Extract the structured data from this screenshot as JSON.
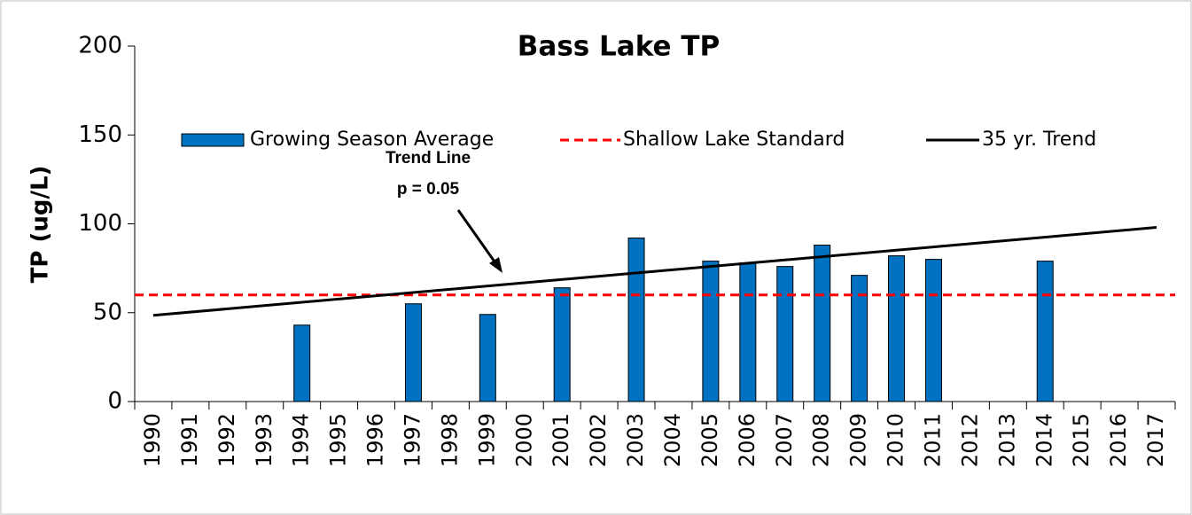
{
  "chart_data": {
    "type": "bar",
    "title": "Bass Lake TP",
    "y_label": "TP (ug/L)",
    "categories": [
      "1990",
      "1991",
      "1992",
      "1993",
      "1994",
      "1995",
      "1996",
      "1997",
      "1998",
      "1999",
      "2000",
      "2001",
      "2002",
      "2003",
      "2004",
      "2005",
      "2006",
      "2007",
      "2008",
      "2009",
      "2010",
      "2011",
      "2012",
      "2013",
      "2014",
      "2015",
      "2016",
      "2017"
    ],
    "series": [
      {
        "name": "Growing Season Average",
        "color": "#0070c0",
        "values": [
          null,
          null,
          null,
          null,
          43,
          null,
          null,
          55,
          null,
          49,
          null,
          64,
          null,
          92,
          null,
          79,
          78,
          76,
          88,
          71,
          82,
          80,
          null,
          null,
          79,
          null,
          null,
          null
        ]
      }
    ],
    "standard": {
      "name": "Shallow Lake Standard",
      "color": "#ff0000",
      "value": 60
    },
    "trend": {
      "name": "35 yr. Trend",
      "color": "#000000",
      "x": [
        "1990",
        "2017"
      ],
      "values": [
        48.5,
        98
      ]
    },
    "annotation": [
      "Trend Line",
      "p = 0.05"
    ],
    "ylim": [
      0,
      200
    ],
    "yticks": [
      0,
      50,
      100,
      150,
      200
    ]
  }
}
